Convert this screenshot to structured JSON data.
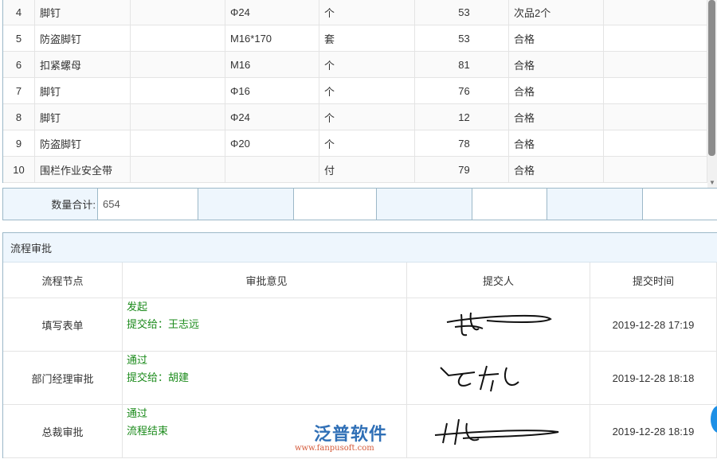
{
  "items": [
    {
      "no": "4",
      "name": "脚钉",
      "spec": "Φ24",
      "unit": "个",
      "qty": "53",
      "status": "次品2个"
    },
    {
      "no": "5",
      "name": "防盗脚钉",
      "spec": "M16*170",
      "unit": "套",
      "qty": "53",
      "status": "合格"
    },
    {
      "no": "6",
      "name": "扣紧螺母",
      "spec": "M16",
      "unit": "个",
      "qty": "81",
      "status": "合格"
    },
    {
      "no": "7",
      "name": "脚钉",
      "spec": "Φ16",
      "unit": "个",
      "qty": "76",
      "status": "合格"
    },
    {
      "no": "8",
      "name": "脚钉",
      "spec": "Φ24",
      "unit": "个",
      "qty": "12",
      "status": "合格"
    },
    {
      "no": "9",
      "name": "防盗脚钉",
      "spec": "Φ20",
      "unit": "个",
      "qty": "78",
      "status": "合格"
    },
    {
      "no": "10",
      "name": "围栏作业安全带",
      "spec": "",
      "unit": "付",
      "qty": "79",
      "status": "合格"
    }
  ],
  "footer": {
    "label": "数量合计:",
    "value": "654"
  },
  "flow": {
    "title": "流程审批",
    "headers": [
      "流程节点",
      "审批意见",
      "提交人",
      "提交时间"
    ],
    "rows": [
      {
        "node": "填写表单",
        "op1": "发起",
        "op2": "提交给：王志远",
        "signer": "signature",
        "time": "2019-12-28 17:19"
      },
      {
        "node": "部门经理审批",
        "op1": "通过",
        "op2": "提交给：胡建",
        "signer": "signature",
        "time": "2019-12-28 18:18"
      },
      {
        "node": "总裁审批",
        "op1": "通过",
        "op2": "流程结束",
        "signer": "signature",
        "time": "2019-12-28 18:19"
      }
    ]
  },
  "watermark": {
    "brand": "泛普软件",
    "url": "www.fanpusoft.com"
  }
}
